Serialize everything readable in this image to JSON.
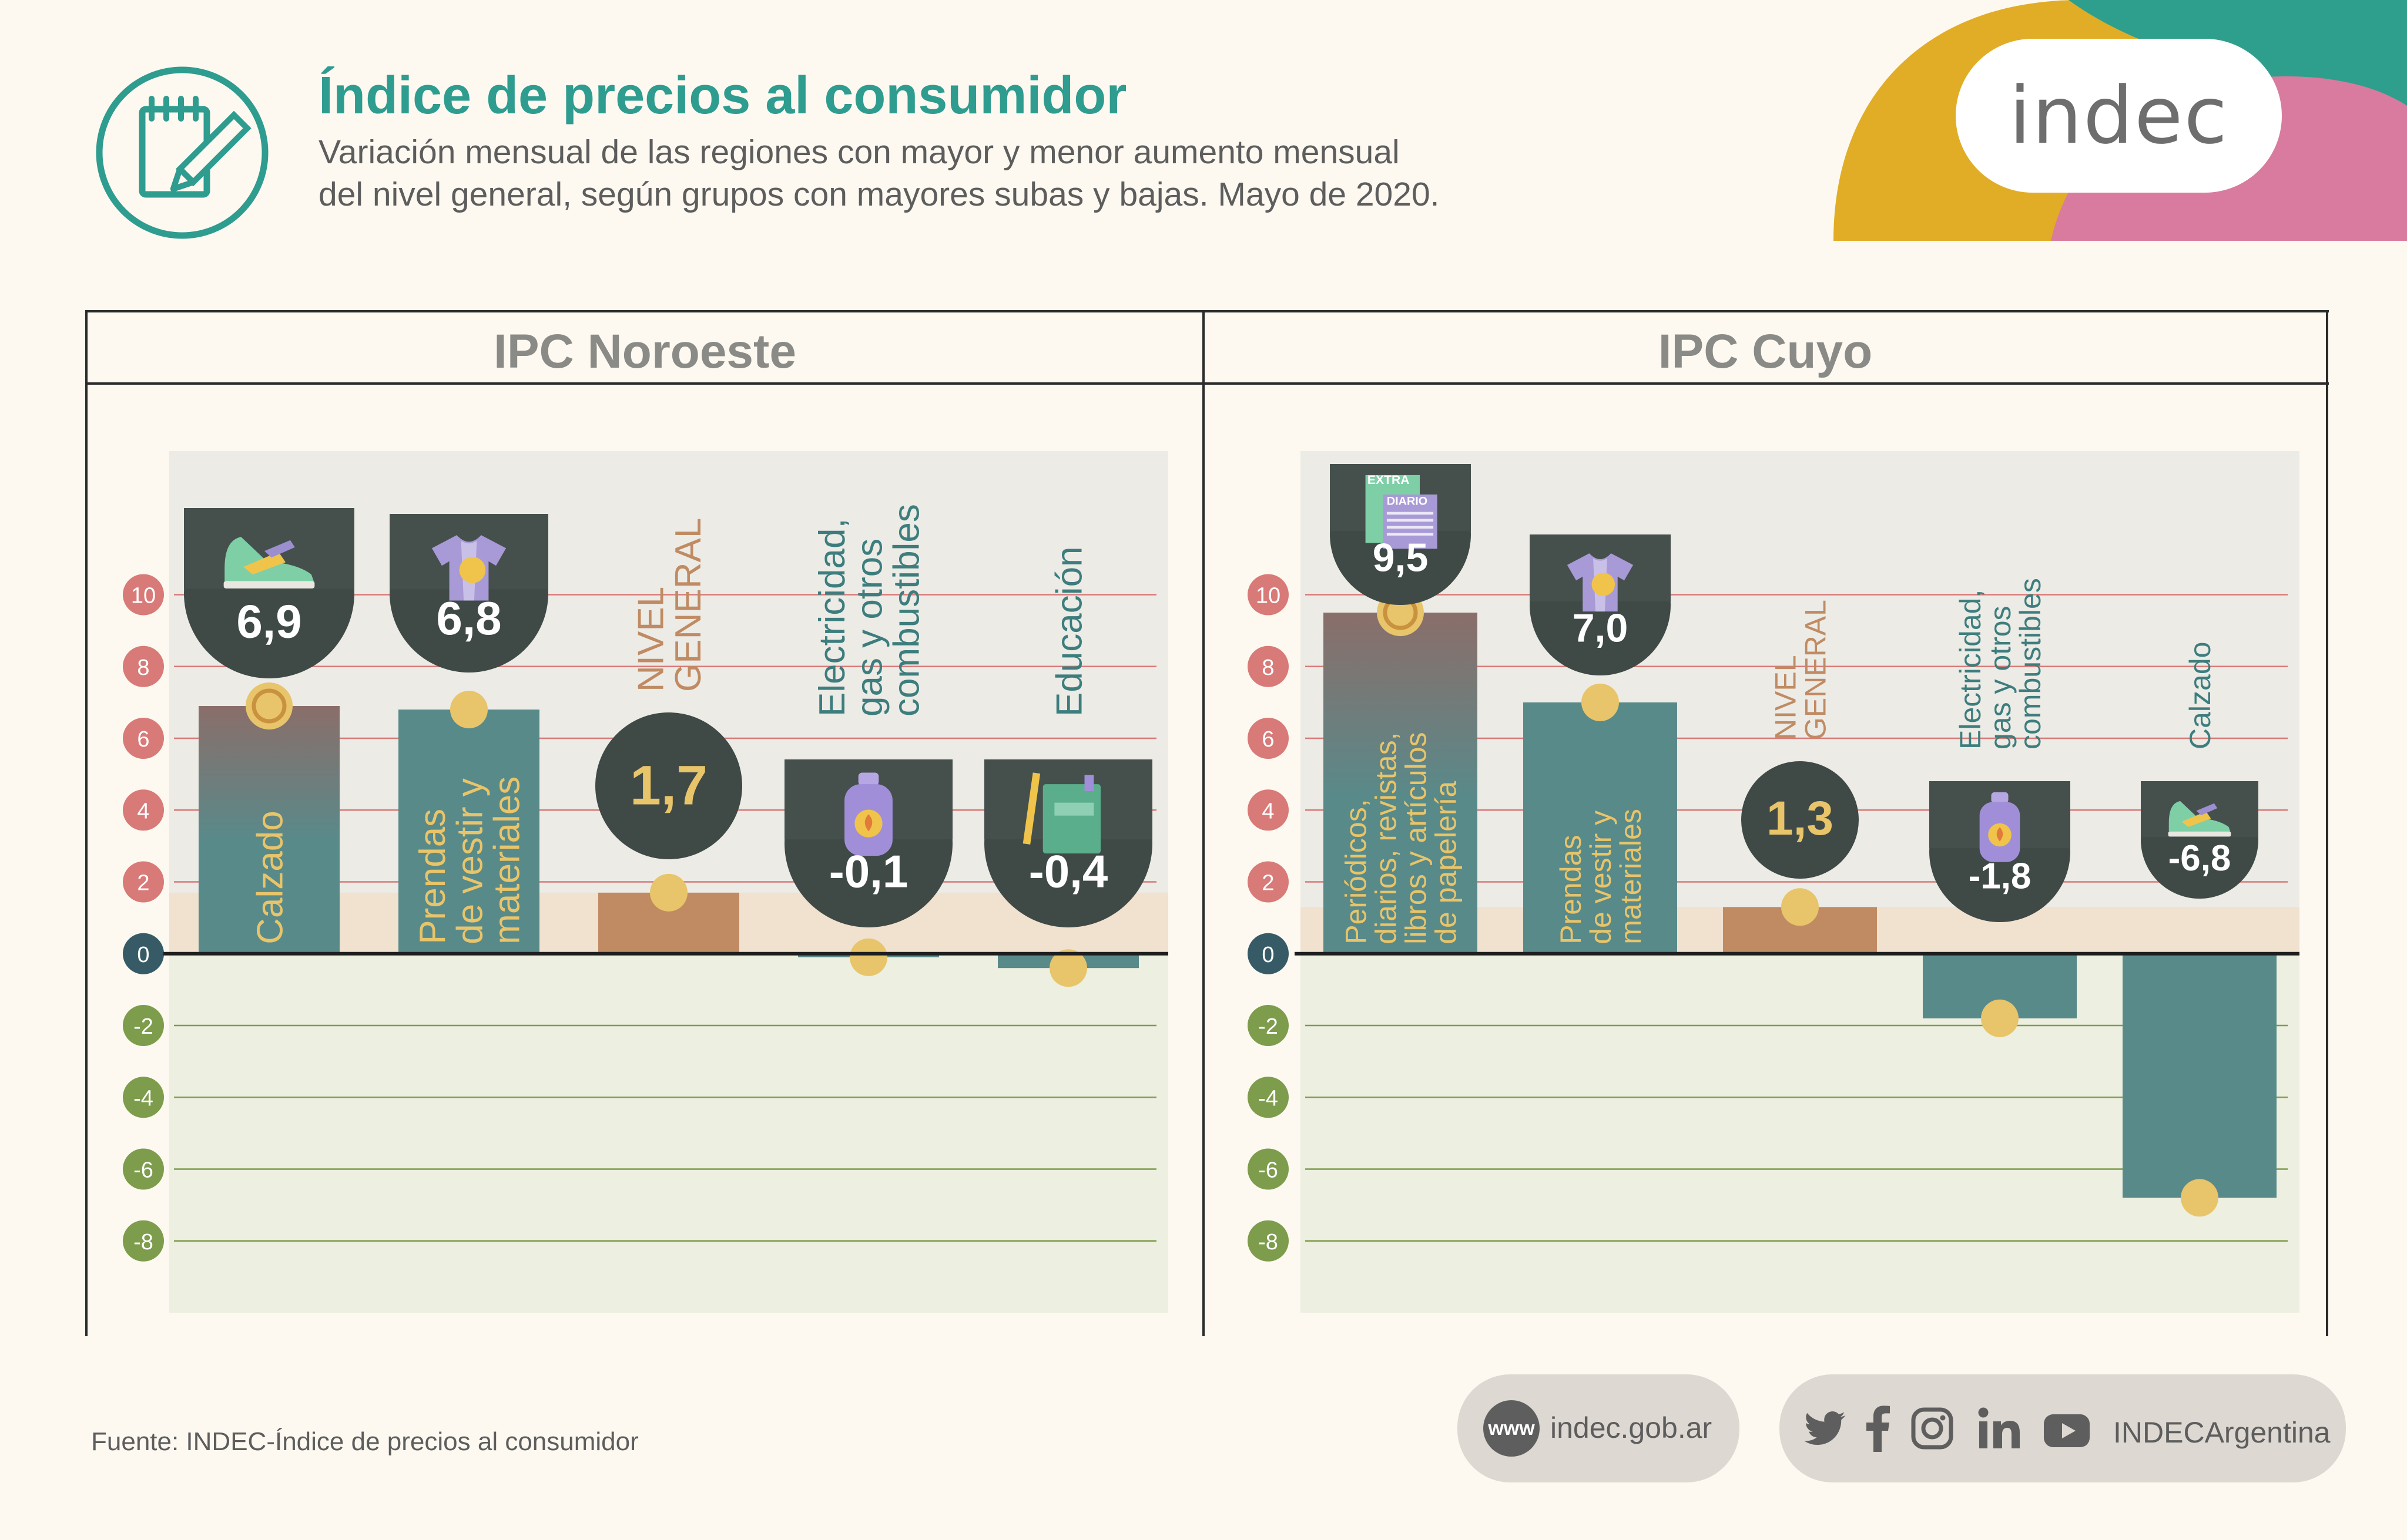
{
  "header": {
    "title": "Índice de precios al consumidor",
    "subtitle_line1": "Variación mensual de las regiones con mayor y menor aumento mensual",
    "subtitle_line2": "del nivel general, según grupos con mayores subas y bajas. Mayo de 2020.",
    "icon": "notepad-pencil-icon"
  },
  "logo": {
    "text": "indec"
  },
  "colors": {
    "teal": "#2e9c8f",
    "bar_teal": "#588a8a",
    "nivel_general": "#c08b63",
    "dark_circle": "#3f4a47",
    "marker": "#e8c46a",
    "positive_tick": "#d87a78",
    "negative_tick": "#7d9c4c",
    "zero_tick": "#365b66",
    "label_teal": "#3d7d7d",
    "label_yellow": "#e8c46a",
    "label_orange": "#c08b63"
  },
  "chart_data": [
    {
      "type": "bar",
      "title": "IPC Noroeste",
      "ylim": [
        -10,
        14
      ],
      "yticks": [
        10,
        8,
        6,
        4,
        2,
        0,
        -2,
        -4,
        -6,
        -8
      ],
      "categories": [
        "Calzado",
        "Prendas de vestir y materiales",
        "NIVEL GENERAL",
        "Electricidad, gas y otros combustibles",
        "Educación"
      ],
      "category_lines": [
        [
          "Calzado"
        ],
        [
          "Prendas",
          "de vestir y",
          "materiales"
        ],
        [
          "NIVEL",
          "GENERAL"
        ],
        [
          "Electricidad,",
          "gas y otros",
          "combustibles"
        ],
        [
          "Educación"
        ]
      ],
      "values": [
        6.9,
        6.8,
        1.7,
        -0.1,
        -0.4
      ],
      "value_labels": [
        "6,9",
        "6,8",
        "1,7",
        "-0,1",
        "-0,4"
      ],
      "icons": [
        "sneaker-icon",
        "tshirt-icon",
        "",
        "gas-cylinder-icon",
        "book-pencil-icon"
      ]
    },
    {
      "type": "bar",
      "title": "IPC Cuyo",
      "ylim": [
        -10,
        14
      ],
      "yticks": [
        10,
        8,
        6,
        4,
        2,
        0,
        -2,
        -4,
        -6,
        -8
      ],
      "categories": [
        "Periódicos, diarios, revistas, libros y artículos de papelería",
        "Prendas de vestir y materiales",
        "NIVEL GENERAL",
        "Electricidad, gas y otros combustibles",
        "Calzado"
      ],
      "category_lines": [
        [
          "Periódicos,",
          "diarios, revistas,",
          "libros y artículos",
          "de papelería"
        ],
        [
          "Prendas",
          "de vestir y",
          "materiales"
        ],
        [
          "NIVEL",
          "GENERAL"
        ],
        [
          "Electricidad,",
          "gas y otros",
          "combustibles"
        ],
        [
          "Calzado"
        ]
      ],
      "values": [
        9.5,
        7.0,
        1.3,
        -1.8,
        -6.8
      ],
      "value_labels": [
        "9,5",
        "7,0",
        "1,3",
        "-1,8",
        "-6,8"
      ],
      "icons": [
        "newspaper-icon",
        "tshirt-icon",
        "",
        "gas-cylinder-icon",
        "sneaker-icon"
      ],
      "icon_text": [
        "EXTRA",
        "DIARIO"
      ]
    }
  ],
  "footer": {
    "source": "Fuente: INDEC-Índice de precios al consumidor",
    "www": "www",
    "website": "indec.gob.ar",
    "social_handle": "INDECArgentina",
    "social_icons": [
      "twitter-icon",
      "facebook-icon",
      "instagram-icon",
      "linkedin-icon",
      "youtube-icon"
    ]
  }
}
